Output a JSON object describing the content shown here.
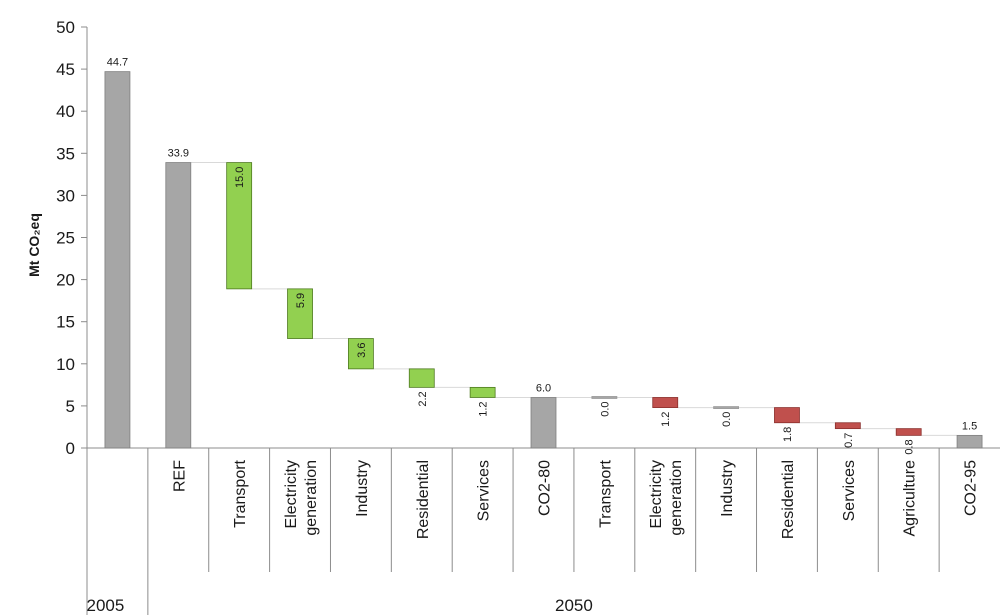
{
  "chart_data": {
    "type": "bar",
    "subtype": "waterfall",
    "ylabel": "Mt CO₂eq",
    "ylim": [
      0,
      50
    ],
    "yticks": [
      0,
      5,
      10,
      15,
      20,
      25,
      30,
      35,
      40,
      45,
      50
    ],
    "grid": false,
    "legend": "none",
    "colors": {
      "total": "#a6a6a6",
      "reduction": "#92d050",
      "increase": "#c0504d",
      "connector": "#d9d9d9"
    },
    "groups": [
      {
        "label": "2005",
        "span": [
          0,
          0
        ]
      },
      {
        "label": "2050",
        "span": [
          1,
          14
        ]
      }
    ],
    "bars": [
      {
        "category": "",
        "kind": "total",
        "start": 0,
        "end": 44.7,
        "label": "44.7"
      },
      {
        "category": "REF",
        "kind": "total",
        "start": 0,
        "end": 33.9,
        "label": "33.9"
      },
      {
        "category": "Transport",
        "kind": "reduction",
        "start": 33.9,
        "end": 18.9,
        "label": "15.0"
      },
      {
        "category": "Electricity generation",
        "kind": "reduction",
        "start": 18.9,
        "end": 13.0,
        "label": "5.9"
      },
      {
        "category": "Industry",
        "kind": "reduction",
        "start": 13.0,
        "end": 9.4,
        "label": "3.6"
      },
      {
        "category": "Residential",
        "kind": "reduction",
        "start": 9.4,
        "end": 7.2,
        "label": "2.2"
      },
      {
        "category": "Services",
        "kind": "reduction",
        "start": 7.2,
        "end": 6.0,
        "label": "1.2"
      },
      {
        "category": "CO2-80",
        "kind": "total",
        "start": 0,
        "end": 6.0,
        "label": "6.0"
      },
      {
        "category": "Transport",
        "kind": "reduction-grey",
        "start": 6.0,
        "end": 6.0,
        "label": "0.0"
      },
      {
        "category": "Electricity generation",
        "kind": "increase",
        "start": 6.0,
        "end": 4.8,
        "label": "1.2"
      },
      {
        "category": "Industry",
        "kind": "reduction-grey",
        "start": 4.8,
        "end": 4.8,
        "label": "0.0"
      },
      {
        "category": "Residential",
        "kind": "increase",
        "start": 4.8,
        "end": 3.0,
        "label": "1.8"
      },
      {
        "category": "Services",
        "kind": "increase",
        "start": 3.0,
        "end": 2.3,
        "label": "0.7"
      },
      {
        "category": "Agriculture",
        "kind": "increase",
        "start": 2.3,
        "end": 1.5,
        "label": "0.8"
      },
      {
        "category": "CO2-95",
        "kind": "total",
        "start": 0,
        "end": 1.5,
        "label": "1.5"
      }
    ]
  }
}
